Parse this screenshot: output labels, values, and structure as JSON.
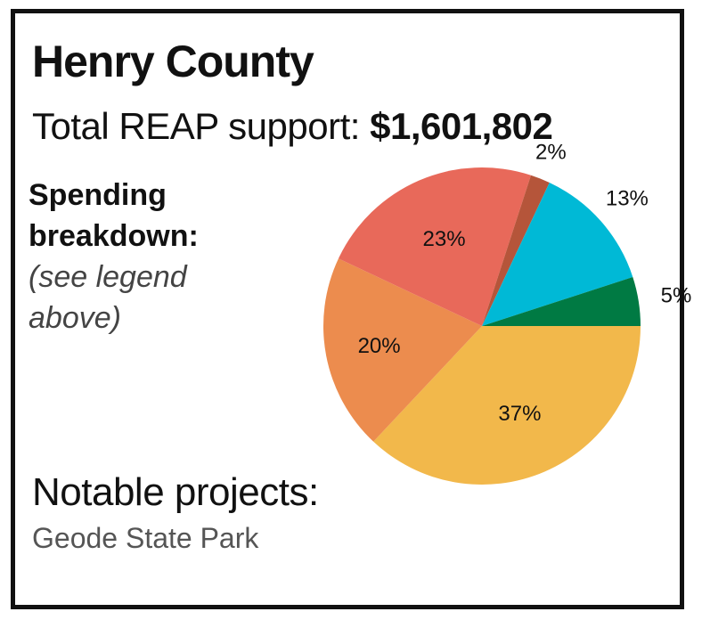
{
  "header": {
    "title": "Henry County",
    "support_label": "Total REAP support:",
    "support_amount": "$1,601,802"
  },
  "breakdown": {
    "label_line1": "Spending",
    "label_line2": "breakdown:",
    "note_line1": "(see legend",
    "note_line2": "above)"
  },
  "projects": {
    "label": "Notable projects:",
    "value": "Geode State Park"
  },
  "chart_data": {
    "type": "pie",
    "title": "",
    "categories": [
      "",
      "",
      "",
      "",
      "",
      ""
    ],
    "values": [
      37,
      20,
      23,
      2,
      13,
      5
    ],
    "labels": [
      "37%",
      "20%",
      "23%",
      "2%",
      "13%",
      "5%"
    ],
    "colors": [
      "#F2B84B",
      "#EC8C4E",
      "#E8695A",
      "#B5553A",
      "#00B9D6",
      "#007A43"
    ],
    "start_angle_deg": 0,
    "direction": "clockwise-from-right"
  }
}
